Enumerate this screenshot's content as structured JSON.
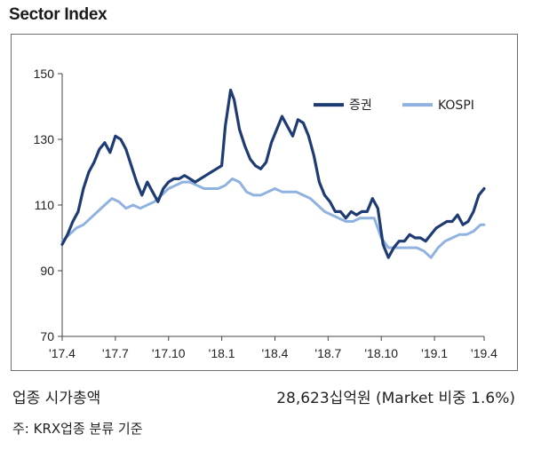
{
  "title": "Sector Index",
  "chart_data": {
    "type": "line",
    "title": "Sector Index",
    "xlabel": "",
    "ylabel": "",
    "ylim": [
      70,
      150
    ],
    "y_ticks": [
      70,
      90,
      110,
      130,
      150
    ],
    "x_ticks": [
      "'17.4",
      "'17.7",
      "'17.10",
      "'18.1",
      "'18.4",
      "'18.7",
      "'18.10",
      "'19.1",
      "'19.4"
    ],
    "grid": false,
    "legend_position": "top-right",
    "x_unit": "months since '17.4",
    "series": [
      {
        "name": "증권",
        "color": "#1f3b73",
        "points": [
          [
            0.0,
            98
          ],
          [
            0.3,
            101
          ],
          [
            0.6,
            105
          ],
          [
            0.9,
            108
          ],
          [
            1.2,
            115
          ],
          [
            1.5,
            120
          ],
          [
            1.8,
            123
          ],
          [
            2.1,
            127
          ],
          [
            2.4,
            129
          ],
          [
            2.7,
            126
          ],
          [
            3.0,
            131
          ],
          [
            3.3,
            130
          ],
          [
            3.6,
            127
          ],
          [
            3.9,
            122
          ],
          [
            4.2,
            117
          ],
          [
            4.5,
            113
          ],
          [
            4.8,
            117
          ],
          [
            5.1,
            114
          ],
          [
            5.4,
            111
          ],
          [
            5.7,
            115
          ],
          [
            6.0,
            117
          ],
          [
            6.3,
            118
          ],
          [
            6.6,
            118
          ],
          [
            6.9,
            119
          ],
          [
            7.2,
            118
          ],
          [
            7.5,
            117
          ],
          [
            7.8,
            118
          ],
          [
            8.1,
            119
          ],
          [
            8.4,
            120
          ],
          [
            8.7,
            121
          ],
          [
            9.0,
            122
          ],
          [
            9.2,
            134
          ],
          [
            9.5,
            145
          ],
          [
            9.7,
            142
          ],
          [
            10.0,
            133
          ],
          [
            10.3,
            128
          ],
          [
            10.6,
            124
          ],
          [
            10.9,
            122
          ],
          [
            11.2,
            121
          ],
          [
            11.5,
            123
          ],
          [
            11.8,
            129
          ],
          [
            12.1,
            133
          ],
          [
            12.4,
            137
          ],
          [
            12.7,
            134
          ],
          [
            13.0,
            131
          ],
          [
            13.3,
            136
          ],
          [
            13.6,
            135
          ],
          [
            13.9,
            131
          ],
          [
            14.2,
            125
          ],
          [
            14.5,
            117
          ],
          [
            14.8,
            113
          ],
          [
            15.1,
            111
          ],
          [
            15.4,
            108
          ],
          [
            15.7,
            108
          ],
          [
            16.0,
            106
          ],
          [
            16.3,
            108
          ],
          [
            16.6,
            107
          ],
          [
            16.9,
            108
          ],
          [
            17.2,
            108
          ],
          [
            17.5,
            112
          ],
          [
            17.8,
            109
          ],
          [
            18.1,
            98
          ],
          [
            18.4,
            94
          ],
          [
            18.7,
            97
          ],
          [
            19.0,
            99
          ],
          [
            19.3,
            99
          ],
          [
            19.6,
            101
          ],
          [
            19.9,
            100
          ],
          [
            20.2,
            100
          ],
          [
            20.5,
            99
          ],
          [
            20.8,
            101
          ],
          [
            21.1,
            103
          ],
          [
            21.4,
            104
          ],
          [
            21.7,
            105
          ],
          [
            22.0,
            105
          ],
          [
            22.3,
            107
          ],
          [
            22.6,
            104
          ],
          [
            22.9,
            105
          ],
          [
            23.2,
            108
          ],
          [
            23.5,
            113
          ],
          [
            23.8,
            115
          ]
        ]
      },
      {
        "name": "KOSPI",
        "color": "#8fb2e0",
        "points": [
          [
            0.0,
            99
          ],
          [
            0.4,
            101
          ],
          [
            0.8,
            103
          ],
          [
            1.2,
            104
          ],
          [
            1.6,
            106
          ],
          [
            2.0,
            108
          ],
          [
            2.4,
            110
          ],
          [
            2.8,
            112
          ],
          [
            3.2,
            111
          ],
          [
            3.6,
            109
          ],
          [
            4.0,
            110
          ],
          [
            4.4,
            109
          ],
          [
            4.8,
            110
          ],
          [
            5.2,
            111
          ],
          [
            5.6,
            113
          ],
          [
            6.0,
            115
          ],
          [
            6.4,
            116
          ],
          [
            6.8,
            117
          ],
          [
            7.2,
            117
          ],
          [
            7.6,
            116
          ],
          [
            8.0,
            115
          ],
          [
            8.4,
            115
          ],
          [
            8.8,
            115
          ],
          [
            9.2,
            116
          ],
          [
            9.6,
            118
          ],
          [
            10.0,
            117
          ],
          [
            10.4,
            114
          ],
          [
            10.8,
            113
          ],
          [
            11.2,
            113
          ],
          [
            11.6,
            114
          ],
          [
            12.0,
            115
          ],
          [
            12.4,
            114
          ],
          [
            12.8,
            114
          ],
          [
            13.2,
            114
          ],
          [
            13.6,
            113
          ],
          [
            14.0,
            112
          ],
          [
            14.4,
            110
          ],
          [
            14.8,
            108
          ],
          [
            15.2,
            107
          ],
          [
            15.6,
            106
          ],
          [
            16.0,
            105
          ],
          [
            16.4,
            105
          ],
          [
            16.8,
            106
          ],
          [
            17.2,
            106
          ],
          [
            17.6,
            106
          ],
          [
            18.0,
            100
          ],
          [
            18.4,
            97
          ],
          [
            18.8,
            97
          ],
          [
            19.2,
            97
          ],
          [
            19.6,
            97
          ],
          [
            20.0,
            97
          ],
          [
            20.4,
            96
          ],
          [
            20.8,
            94
          ],
          [
            21.2,
            97
          ],
          [
            21.6,
            99
          ],
          [
            22.0,
            100
          ],
          [
            22.4,
            101
          ],
          [
            22.8,
            101
          ],
          [
            23.2,
            102
          ],
          [
            23.6,
            104
          ],
          [
            23.8,
            104
          ]
        ]
      }
    ]
  },
  "info": {
    "sector_label": "업종 시가총액",
    "market_cap": "28,623십억원 (Market 비중 1.6%)"
  },
  "note": "주: KRX업종 분류 기준"
}
